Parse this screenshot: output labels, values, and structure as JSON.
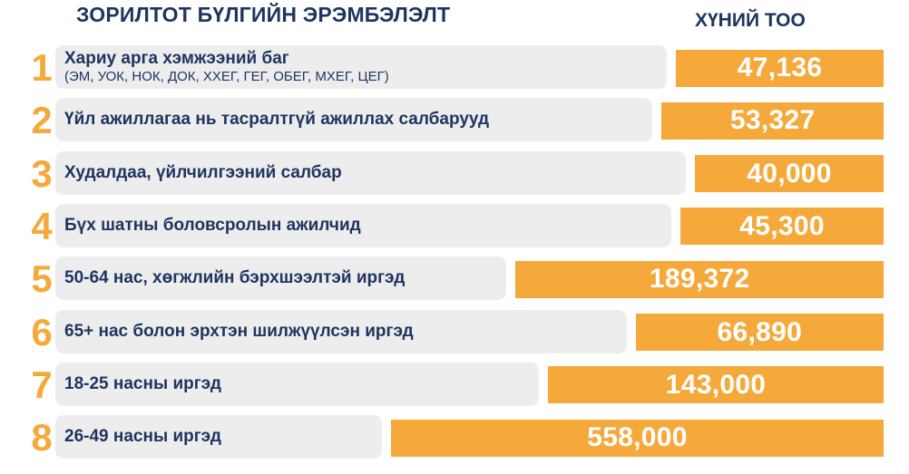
{
  "header": {
    "title": "ЗОРИЛТОТ БҮЛГИЙН ЭРЭМБЭЛЭЛТ",
    "count_label": "ХҮНИЙ ТОО"
  },
  "colors": {
    "accent": "#f6a93b",
    "text": "#1f3560",
    "label_bg": "#ededed"
  },
  "chart_data": {
    "type": "bar",
    "orientation": "horizontal",
    "title": "ЗОРИЛТОТ БҮЛГИЙН ЭРЭМБЭЛЭЛТ",
    "value_header": "ХҮНИЙ ТОО",
    "ranks": [
      "1",
      "2",
      "3",
      "4",
      "5",
      "6",
      "7",
      "8"
    ],
    "categories": [
      "Хариу арга хэмжээний баг",
      "Үйл ажиллагаа нь тасралтгүй ажиллах салбарууд",
      "Худалдаа, үйлчилгээний салбар",
      "Бүх шатны боловсролын ажилчид",
      "50-64 нас, хөгжлийн бэрхшээлтэй иргэд",
      "65+ нас болон эрхтэн шилжүүлсэн иргэд",
      "18-25 насны иргэд",
      "26-49 насны иргэд"
    ],
    "subtitles": [
      "(ЭМ, УОК, НОК, ДОК, ХХЕГ, ГЕГ, ОБЕГ, МХЕГ, ЦЕГ)",
      "",
      "",
      "",
      "",
      "",
      "",
      ""
    ],
    "values": [
      47136,
      53327,
      40000,
      45300,
      189372,
      66890,
      143000,
      558000
    ],
    "value_labels": [
      "47,136",
      "53,327",
      "40,000",
      "45,300",
      "189,372",
      "66,890",
      "143,000",
      "558,000"
    ]
  }
}
